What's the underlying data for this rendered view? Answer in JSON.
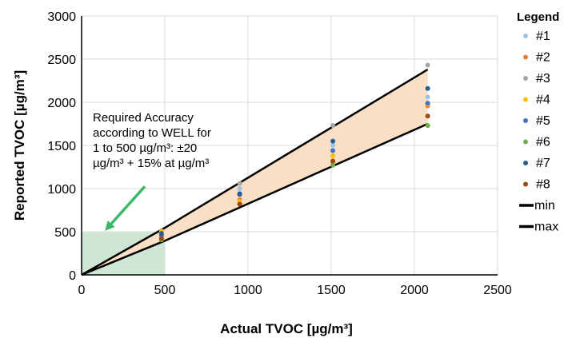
{
  "chart_data": {
    "type": "scatter",
    "xlabel": "Actual TVOC [µg/m³]",
    "ylabel": "Reported TVOC [µg/m³]",
    "xlim": [
      0,
      2500
    ],
    "ylim": [
      0,
      3000
    ],
    "xticks": [
      "0",
      "500",
      "1000",
      "1500",
      "2000",
      "2500"
    ],
    "yticks": [
      "0",
      "500",
      "1000",
      "1500",
      "2000",
      "2500",
      "3000"
    ],
    "grid": true,
    "legend_title": "Legend",
    "legend_position": "right",
    "series": [
      {
        "name": "#1",
        "color": "#9dc3e6",
        "points": [
          [
            480,
            470
          ],
          [
            950,
            1000
          ],
          [
            1510,
            1500
          ],
          [
            2080,
            2060
          ]
        ]
      },
      {
        "name": "#2",
        "color": "#ed7d31",
        "points": [
          [
            480,
            445
          ],
          [
            950,
            870
          ],
          [
            1510,
            1310
          ],
          [
            2080,
            1960
          ]
        ]
      },
      {
        "name": "#3",
        "color": "#a5a5a5",
        "points": [
          [
            480,
            510
          ],
          [
            950,
            1060
          ],
          [
            1510,
            1730
          ],
          [
            2080,
            2430
          ]
        ]
      },
      {
        "name": "#4",
        "color": "#ffc000",
        "points": [
          [
            480,
            500
          ],
          [
            950,
            850
          ],
          [
            1510,
            1380
          ],
          [
            2080,
            1980
          ]
        ]
      },
      {
        "name": "#5",
        "color": "#4472c4",
        "points": [
          [
            480,
            460
          ],
          [
            950,
            930
          ],
          [
            1510,
            1440
          ],
          [
            2080,
            1990
          ]
        ]
      },
      {
        "name": "#6",
        "color": "#70ad47",
        "points": [
          [
            480,
            405
          ],
          [
            950,
            820
          ],
          [
            1510,
            1270
          ],
          [
            2080,
            1730
          ]
        ]
      },
      {
        "name": "#7",
        "color": "#255e91",
        "points": [
          [
            480,
            480
          ],
          [
            950,
            940
          ],
          [
            1510,
            1550
          ],
          [
            2080,
            2160
          ]
        ]
      },
      {
        "name": "#8",
        "color": "#9e480e",
        "points": [
          [
            480,
            420
          ],
          [
            950,
            820
          ],
          [
            1510,
            1320
          ],
          [
            2080,
            1840
          ]
        ]
      }
    ],
    "lines": [
      {
        "name": "min",
        "color": "#000000",
        "points": [
          [
            0,
            0
          ],
          [
            500,
            395
          ],
          [
            2080,
            1750
          ]
        ]
      },
      {
        "name": "max",
        "color": "#000000",
        "points": [
          [
            0,
            0
          ],
          [
            500,
            545
          ],
          [
            2080,
            2380
          ]
        ]
      }
    ],
    "band_color": "#f8dfc6",
    "required_region": {
      "x_range": [
        0,
        500
      ],
      "y_range": [
        0,
        500
      ],
      "color": "#cfe6d5"
    },
    "annotation": {
      "lines": [
        "Required Accuracy",
        "according to WELL for",
        "1 to 500 µg/m³: ±20",
        "µg/m³ + 15% at µg/m³"
      ],
      "arrow_color": "#3cb86b",
      "arrow_from": [
        380,
        1025
      ],
      "arrow_to": [
        140,
        510
      ]
    }
  }
}
